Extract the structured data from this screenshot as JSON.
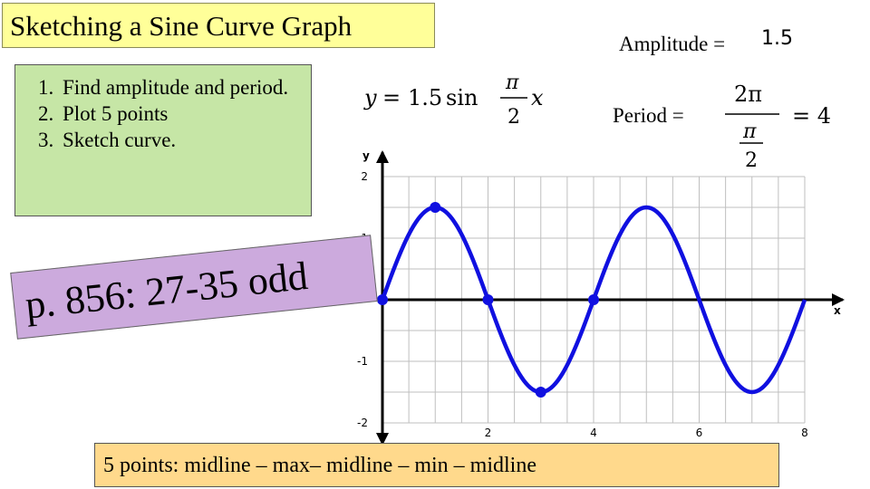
{
  "slide": {
    "title": "Sketching a Sine Curve Graph",
    "steps": [
      "Find amplitude and period.",
      "Plot 5 points",
      "Sketch curve."
    ],
    "equation": {
      "lhs": "y",
      "eq": "=",
      "coef": "1.5",
      "func": "sin",
      "num": "π",
      "den": "2",
      "var": "x"
    },
    "amplitude_label": "Amplitude =",
    "amplitude_value": "1.5",
    "period_label": "Period =",
    "period_eq": {
      "num": "2π",
      "inner_num": "π",
      "inner_den": "2",
      "result": "= 4"
    },
    "assignment": "p. 856: 27-35 odd",
    "footer": "5 points: midline – max– midline – min – midline"
  },
  "colors": {
    "curve": "#1010e0",
    "grid": "#bfbfbf",
    "axis": "#000000"
  },
  "chart_data": {
    "type": "line",
    "function": "y = 1.5 sin(πx/2)",
    "xlabel": "x",
    "ylabel": "y",
    "xlim": [
      0,
      8
    ],
    "ylim": [
      -2,
      2
    ],
    "x_ticks": [
      "2",
      "4",
      "6",
      "8"
    ],
    "y_ticks": [
      "2",
      "1",
      "-1",
      "-2"
    ],
    "grid": true,
    "series": [
      {
        "x": [
          0,
          0.5,
          1,
          1.5,
          2,
          2.5,
          3,
          3.5,
          4,
          4.5,
          5,
          5.5,
          6,
          6.5,
          7,
          7.5,
          8
        ],
        "y": [
          0,
          1.06,
          1.5,
          1.06,
          0,
          -1.06,
          -1.5,
          -1.06,
          0,
          1.06,
          1.5,
          1.06,
          0,
          -1.06,
          -1.5,
          -1.06,
          0
        ]
      }
    ],
    "key_points": [
      {
        "x": 0,
        "y": 0
      },
      {
        "x": 1,
        "y": 1.5
      },
      {
        "x": 2,
        "y": 0
      },
      {
        "x": 3,
        "y": -1.5
      },
      {
        "x": 4,
        "y": 0
      }
    ]
  }
}
